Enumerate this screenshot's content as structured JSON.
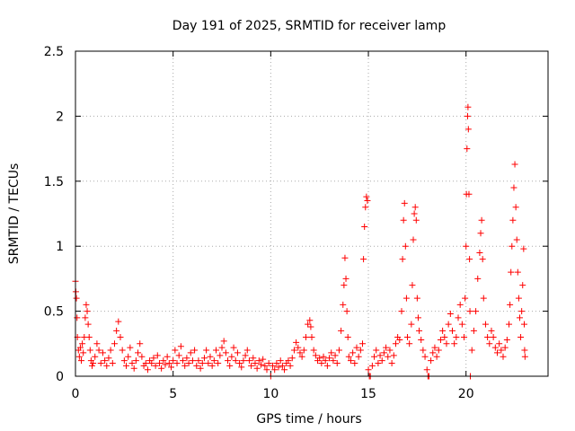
{
  "chart_data": {
    "type": "scatter",
    "title": "Day 191 of 2025, SRMTID for receiver lamp",
    "xlabel": "GPS time / hours",
    "ylabel": "SRMTID / TECUs",
    "xlim": [
      0,
      24.2
    ],
    "ylim": [
      0,
      2.5
    ],
    "xticks": [
      0,
      5,
      10,
      15,
      20
    ],
    "xtick_labels": [
      "0",
      "5",
      "10",
      "15",
      "20"
    ],
    "yticks": [
      0,
      0.5,
      1,
      1.5,
      2,
      2.5
    ],
    "ytick_labels": [
      "0",
      "0.5",
      "1",
      "1.5",
      "2",
      "2.5"
    ],
    "grid": true,
    "marker": "+",
    "series": [
      {
        "name": "SRMTID",
        "color": "#ff0000",
        "points": [
          [
            0.0,
            0.73
          ],
          [
            0.02,
            0.65
          ],
          [
            0.05,
            0.6
          ],
          [
            0.08,
            0.45
          ],
          [
            0.1,
            0.3
          ],
          [
            0.15,
            0.2
          ],
          [
            0.2,
            0.15
          ],
          [
            0.25,
            0.22
          ],
          [
            0.3,
            0.12
          ],
          [
            0.35,
            0.25
          ],
          [
            0.4,
            0.18
          ],
          [
            0.45,
            0.3
          ],
          [
            0.5,
            0.45
          ],
          [
            0.55,
            0.55
          ],
          [
            0.6,
            0.5
          ],
          [
            0.65,
            0.4
          ],
          [
            0.7,
            0.3
          ],
          [
            0.75,
            0.2
          ],
          [
            0.8,
            0.12
          ],
          [
            0.85,
            0.08
          ],
          [
            0.9,
            0.1
          ],
          [
            1.0,
            0.15
          ],
          [
            1.1,
            0.25
          ],
          [
            1.2,
            0.2
          ],
          [
            1.3,
            0.1
          ],
          [
            1.4,
            0.18
          ],
          [
            1.5,
            0.12
          ],
          [
            1.6,
            0.08
          ],
          [
            1.7,
            0.14
          ],
          [
            1.8,
            0.2
          ],
          [
            1.9,
            0.1
          ],
          [
            2.0,
            0.25
          ],
          [
            2.1,
            0.35
          ],
          [
            2.2,
            0.42
          ],
          [
            2.3,
            0.3
          ],
          [
            2.4,
            0.2
          ],
          [
            2.5,
            0.12
          ],
          [
            2.6,
            0.08
          ],
          [
            2.7,
            0.15
          ],
          [
            2.8,
            0.22
          ],
          [
            2.9,
            0.1
          ],
          [
            3.0,
            0.06
          ],
          [
            3.1,
            0.12
          ],
          [
            3.2,
            0.18
          ],
          [
            3.3,
            0.25
          ],
          [
            3.4,
            0.15
          ],
          [
            3.5,
            0.08
          ],
          [
            3.6,
            0.1
          ],
          [
            3.7,
            0.05
          ],
          [
            3.8,
            0.12
          ],
          [
            3.9,
            0.1
          ],
          [
            4.0,
            0.14
          ],
          [
            4.1,
            0.08
          ],
          [
            4.2,
            0.16
          ],
          [
            4.3,
            0.1
          ],
          [
            4.4,
            0.06
          ],
          [
            4.5,
            0.12
          ],
          [
            4.6,
            0.09
          ],
          [
            4.7,
            0.15
          ],
          [
            4.8,
            0.1
          ],
          [
            4.9,
            0.07
          ],
          [
            5.0,
            0.12
          ],
          [
            5.1,
            0.2
          ],
          [
            5.2,
            0.1
          ],
          [
            5.3,
            0.16
          ],
          [
            5.4,
            0.23
          ],
          [
            5.5,
            0.12
          ],
          [
            5.6,
            0.08
          ],
          [
            5.7,
            0.14
          ],
          [
            5.8,
            0.1
          ],
          [
            5.9,
            0.18
          ],
          [
            6.0,
            0.12
          ],
          [
            6.1,
            0.2
          ],
          [
            6.2,
            0.08
          ],
          [
            6.3,
            0.12
          ],
          [
            6.4,
            0.06
          ],
          [
            6.5,
            0.1
          ],
          [
            6.6,
            0.14
          ],
          [
            6.7,
            0.2
          ],
          [
            6.8,
            0.1
          ],
          [
            6.9,
            0.15
          ],
          [
            7.0,
            0.08
          ],
          [
            7.1,
            0.12
          ],
          [
            7.2,
            0.2
          ],
          [
            7.3,
            0.1
          ],
          [
            7.4,
            0.16
          ],
          [
            7.5,
            0.22
          ],
          [
            7.6,
            0.27
          ],
          [
            7.7,
            0.18
          ],
          [
            7.8,
            0.12
          ],
          [
            7.9,
            0.08
          ],
          [
            8.0,
            0.15
          ],
          [
            8.1,
            0.22
          ],
          [
            8.2,
            0.12
          ],
          [
            8.3,
            0.18
          ],
          [
            8.4,
            0.1
          ],
          [
            8.5,
            0.07
          ],
          [
            8.6,
            0.12
          ],
          [
            8.7,
            0.16
          ],
          [
            8.8,
            0.2
          ],
          [
            8.9,
            0.12
          ],
          [
            9.0,
            0.08
          ],
          [
            9.1,
            0.14
          ],
          [
            9.2,
            0.1
          ],
          [
            9.3,
            0.06
          ],
          [
            9.4,
            0.12
          ],
          [
            9.5,
            0.09
          ],
          [
            9.6,
            0.13
          ],
          [
            9.7,
            0.08
          ],
          [
            9.8,
            0.05
          ],
          [
            9.9,
            0.1
          ],
          [
            10.0,
            0.0
          ],
          [
            10.1,
            0.08
          ],
          [
            10.2,
            0.05
          ],
          [
            10.3,
            0.1
          ],
          [
            10.4,
            0.07
          ],
          [
            10.5,
            0.12
          ],
          [
            10.6,
            0.08
          ],
          [
            10.7,
            0.05
          ],
          [
            10.8,
            0.1
          ],
          [
            10.9,
            0.12
          ],
          [
            11.0,
            0.08
          ],
          [
            11.1,
            0.14
          ],
          [
            11.2,
            0.2
          ],
          [
            11.3,
            0.26
          ],
          [
            11.4,
            0.22
          ],
          [
            11.5,
            0.18
          ],
          [
            11.6,
            0.15
          ],
          [
            11.7,
            0.2
          ],
          [
            11.8,
            0.3
          ],
          [
            11.9,
            0.4
          ],
          [
            12.0,
            0.43
          ],
          [
            12.05,
            0.38
          ],
          [
            12.1,
            0.3
          ],
          [
            12.2,
            0.2
          ],
          [
            12.3,
            0.16
          ],
          [
            12.4,
            0.12
          ],
          [
            12.5,
            0.14
          ],
          [
            12.6,
            0.1
          ],
          [
            12.7,
            0.15
          ],
          [
            12.8,
            0.12
          ],
          [
            12.9,
            0.08
          ],
          [
            13.0,
            0.14
          ],
          [
            13.1,
            0.18
          ],
          [
            13.2,
            0.12
          ],
          [
            13.3,
            0.16
          ],
          [
            13.4,
            0.1
          ],
          [
            13.5,
            0.2
          ],
          [
            13.6,
            0.35
          ],
          [
            13.7,
            0.55
          ],
          [
            13.75,
            0.7
          ],
          [
            13.8,
            0.91
          ],
          [
            13.85,
            0.75
          ],
          [
            13.9,
            0.5
          ],
          [
            13.95,
            0.3
          ],
          [
            14.0,
            0.15
          ],
          [
            14.1,
            0.12
          ],
          [
            14.2,
            0.18
          ],
          [
            14.3,
            0.1
          ],
          [
            14.4,
            0.22
          ],
          [
            14.5,
            0.15
          ],
          [
            14.6,
            0.2
          ],
          [
            14.7,
            0.25
          ],
          [
            14.75,
            0.9
          ],
          [
            14.8,
            1.15
          ],
          [
            14.85,
            1.3
          ],
          [
            14.9,
            1.38
          ],
          [
            14.95,
            1.35
          ],
          [
            15.0,
            0.05
          ],
          [
            15.05,
            0.0
          ],
          [
            15.1,
            0.0
          ],
          [
            15.2,
            0.08
          ],
          [
            15.3,
            0.15
          ],
          [
            15.4,
            0.2
          ],
          [
            15.5,
            0.1
          ],
          [
            15.6,
            0.16
          ],
          [
            15.7,
            0.12
          ],
          [
            15.8,
            0.18
          ],
          [
            15.9,
            0.22
          ],
          [
            16.0,
            0.15
          ],
          [
            16.1,
            0.2
          ],
          [
            16.2,
            0.1
          ],
          [
            16.3,
            0.16
          ],
          [
            16.4,
            0.25
          ],
          [
            16.5,
            0.3
          ],
          [
            16.6,
            0.28
          ],
          [
            16.7,
            0.5
          ],
          [
            16.75,
            0.9
          ],
          [
            16.8,
            1.2
          ],
          [
            16.85,
            1.33
          ],
          [
            16.9,
            1.0
          ],
          [
            16.95,
            0.6
          ],
          [
            17.0,
            0.3
          ],
          [
            17.1,
            0.25
          ],
          [
            17.2,
            0.4
          ],
          [
            17.25,
            0.7
          ],
          [
            17.3,
            1.05
          ],
          [
            17.35,
            1.25
          ],
          [
            17.4,
            1.3
          ],
          [
            17.45,
            1.2
          ],
          [
            17.5,
            0.6
          ],
          [
            17.55,
            0.45
          ],
          [
            17.6,
            0.35
          ],
          [
            17.7,
            0.28
          ],
          [
            17.8,
            0.2
          ],
          [
            17.9,
            0.15
          ],
          [
            18.0,
            0.05
          ],
          [
            18.05,
            0.0
          ],
          [
            18.1,
            0.0
          ],
          [
            18.2,
            0.12
          ],
          [
            18.3,
            0.18
          ],
          [
            18.4,
            0.22
          ],
          [
            18.5,
            0.15
          ],
          [
            18.6,
            0.2
          ],
          [
            18.7,
            0.28
          ],
          [
            18.8,
            0.35
          ],
          [
            18.9,
            0.3
          ],
          [
            19.0,
            0.25
          ],
          [
            19.1,
            0.4
          ],
          [
            19.2,
            0.48
          ],
          [
            19.3,
            0.35
          ],
          [
            19.4,
            0.25
          ],
          [
            19.5,
            0.3
          ],
          [
            19.6,
            0.45
          ],
          [
            19.7,
            0.55
          ],
          [
            19.8,
            0.4
          ],
          [
            19.9,
            0.3
          ],
          [
            19.95,
            0.6
          ],
          [
            20.0,
            1.0
          ],
          [
            20.02,
            1.4
          ],
          [
            20.05,
            1.75
          ],
          [
            20.08,
            2.0
          ],
          [
            20.1,
            2.07
          ],
          [
            20.12,
            1.9
          ],
          [
            20.15,
            1.4
          ],
          [
            20.18,
            0.9
          ],
          [
            20.2,
            0.5
          ],
          [
            20.22,
            0.0
          ],
          [
            20.3,
            0.2
          ],
          [
            20.4,
            0.35
          ],
          [
            20.5,
            0.5
          ],
          [
            20.6,
            0.75
          ],
          [
            20.7,
            0.95
          ],
          [
            20.75,
            1.1
          ],
          [
            20.8,
            1.2
          ],
          [
            20.85,
            0.9
          ],
          [
            20.9,
            0.6
          ],
          [
            21.0,
            0.4
          ],
          [
            21.1,
            0.3
          ],
          [
            21.2,
            0.25
          ],
          [
            21.3,
            0.35
          ],
          [
            21.4,
            0.3
          ],
          [
            21.5,
            0.22
          ],
          [
            21.6,
            0.18
          ],
          [
            21.7,
            0.25
          ],
          [
            21.8,
            0.2
          ],
          [
            21.9,
            0.15
          ],
          [
            22.0,
            0.22
          ],
          [
            22.1,
            0.28
          ],
          [
            22.2,
            0.4
          ],
          [
            22.25,
            0.55
          ],
          [
            22.3,
            0.8
          ],
          [
            22.35,
            1.0
          ],
          [
            22.4,
            1.2
          ],
          [
            22.45,
            1.45
          ],
          [
            22.5,
            1.63
          ],
          [
            22.55,
            1.3
          ],
          [
            22.6,
            1.05
          ],
          [
            22.65,
            0.8
          ],
          [
            22.7,
            0.6
          ],
          [
            22.75,
            0.45
          ],
          [
            22.8,
            0.3
          ],
          [
            22.85,
            0.5
          ],
          [
            22.9,
            0.7
          ],
          [
            22.95,
            0.98
          ],
          [
            22.98,
            0.4
          ],
          [
            23.0,
            0.2
          ],
          [
            23.02,
            0.15
          ]
        ]
      }
    ]
  }
}
